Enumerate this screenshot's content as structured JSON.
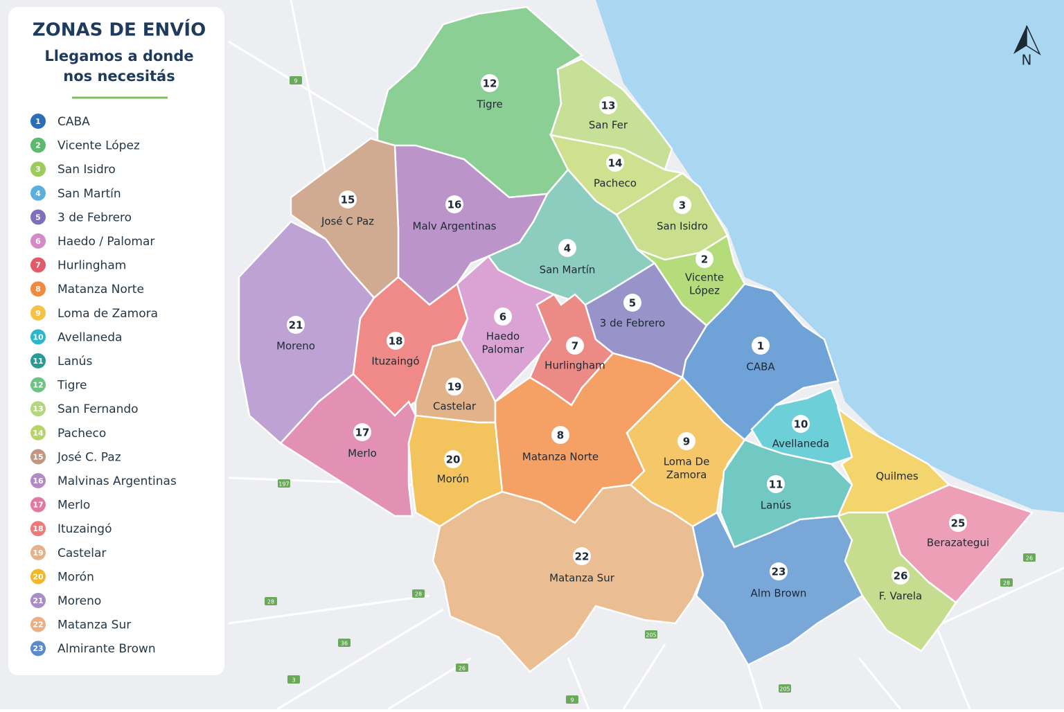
{
  "legend": {
    "title": "ZONAS DE ENVÍO",
    "subtitle_lines": [
      "Llegamos a donde",
      "nos necesitás"
    ],
    "items": [
      {
        "number": "1",
        "name": "CABA"
      },
      {
        "number": "2",
        "name": "Vicente López"
      },
      {
        "number": "3",
        "name": "San Isidro"
      },
      {
        "number": "4",
        "name": "San Martín"
      },
      {
        "number": "5",
        "name": "3 de Febrero"
      },
      {
        "number": "6",
        "name": "Haedo / Palomar"
      },
      {
        "number": "7",
        "name": "Hurlingham"
      },
      {
        "number": "8",
        "name": "Matanza Norte"
      },
      {
        "number": "9",
        "name": "Loma de Zamora"
      },
      {
        "number": "10",
        "name": "Avellaneda"
      },
      {
        "number": "11",
        "name": "Lanús"
      },
      {
        "number": "12",
        "name": "Tigre"
      },
      {
        "number": "13",
        "name": "San Fernando"
      },
      {
        "number": "14",
        "name": "Pacheco"
      },
      {
        "number": "15",
        "name": "José C. Paz"
      },
      {
        "number": "16",
        "name": "Malvinas Argentinas"
      },
      {
        "number": "17",
        "name": "Merlo"
      },
      {
        "number": "18",
        "name": "Ituzaingó"
      },
      {
        "number": "19",
        "name": "Castelar"
      },
      {
        "number": "20",
        "name": "Morón"
      },
      {
        "number": "21",
        "name": "Moreno"
      },
      {
        "number": "22",
        "name": "Matanza Sur"
      },
      {
        "number": "23",
        "name": "Almirante Brown"
      }
    ]
  },
  "zones": [
    {
      "number": "12",
      "lines": [
        "Tigre"
      ]
    },
    {
      "number": "13",
      "lines": [
        "San Fer"
      ]
    },
    {
      "number": "14",
      "lines": [
        "Pacheco"
      ]
    },
    {
      "number": "3",
      "lines": [
        "San Isidro"
      ]
    },
    {
      "number": "2",
      "lines": [
        "Vicente",
        "López"
      ]
    },
    {
      "number": "4",
      "lines": [
        "San Martín"
      ]
    },
    {
      "number": "16",
      "lines": [
        "Malv Argentinas"
      ]
    },
    {
      "number": "15",
      "lines": [
        "José C Paz"
      ]
    },
    {
      "number": "21",
      "lines": [
        "Moreno"
      ]
    },
    {
      "number": "18",
      "lines": [
        "Ituzaingó"
      ]
    },
    {
      "number": "6",
      "lines": [
        "Haedo",
        "Palomar"
      ]
    },
    {
      "number": "7",
      "lines": [
        "Hurlingham"
      ]
    },
    {
      "number": "5",
      "lines": [
        "3 de Febrero"
      ]
    },
    {
      "number": "1",
      "lines": [
        "CABA"
      ]
    },
    {
      "number": "19",
      "lines": [
        "Castelar"
      ]
    },
    {
      "number": "17",
      "lines": [
        "Merlo"
      ]
    },
    {
      "number": "20",
      "lines": [
        "Morón"
      ]
    },
    {
      "number": "8",
      "lines": [
        "Matanza Norte"
      ]
    },
    {
      "number": "9",
      "lines": [
        "Loma De",
        "Zamora"
      ]
    },
    {
      "number": "22",
      "lines": [
        "Matanza Sur"
      ]
    },
    {
      "number": "10",
      "lines": [
        "Avellaneda"
      ]
    },
    {
      "number": "11",
      "lines": [
        "Lanús"
      ]
    },
    {
      "lines": [
        "Quilmes"
      ]
    },
    {
      "number": "25",
      "lines": [
        "Berazategui"
      ]
    },
    {
      "number": "23",
      "lines": [
        "Alm Brown"
      ]
    },
    {
      "number": "26",
      "lines": [
        "F. Varela"
      ]
    }
  ],
  "road_shields": [
    "9",
    "197",
    "28",
    "36",
    "3",
    "26",
    "28",
    "205",
    "205",
    "9",
    "26",
    "28"
  ],
  "compass": "N"
}
